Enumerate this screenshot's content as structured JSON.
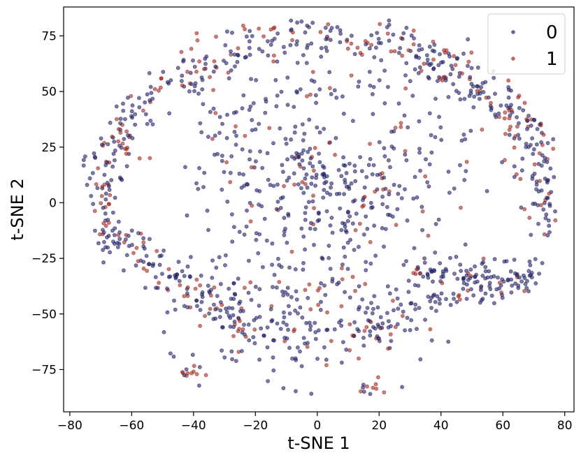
{
  "chart_data": {
    "type": "scatter",
    "xlabel": "t-SNE 1",
    "ylabel": "t-SNE 2",
    "xlim": [
      -82,
      83
    ],
    "ylim": [
      -94,
      88
    ],
    "xticks": [
      -80,
      -60,
      -40,
      -20,
      0,
      20,
      40,
      60,
      80
    ],
    "yticks": [
      -75,
      -50,
      -25,
      0,
      25,
      50,
      75
    ],
    "grid": false,
    "legend_placement": "top-right",
    "series": [
      {
        "name": "0",
        "color": "#1f1f66",
        "alpha": 0.6,
        "points": "generated"
      },
      {
        "name": "1",
        "color": "#a0281e",
        "alpha": 0.6,
        "points": "generated"
      }
    ],
    "structure": {
      "outer_arc": {
        "description": "dense ring of points from (-72,-10) up to (0,78) and down to (75,10)"
      },
      "clusters": [
        {
          "x": 5,
          "y": 0,
          "spread": 20,
          "label_mix": 0.1
        },
        {
          "x": -10,
          "y": -50,
          "spread": 15,
          "label_mix": 0.15
        },
        {
          "x": 20,
          "y": -55,
          "spread": 8,
          "label_mix": 0.2
        },
        {
          "x": -40,
          "y": -77,
          "spread": 2,
          "label_mix": 0.6
        },
        {
          "x": 18,
          "y": -83,
          "spread": 3,
          "label_mix": 0.6
        },
        {
          "x": 55,
          "y": -30,
          "spread": 10,
          "label_mix": 0.1
        }
      ]
    }
  }
}
